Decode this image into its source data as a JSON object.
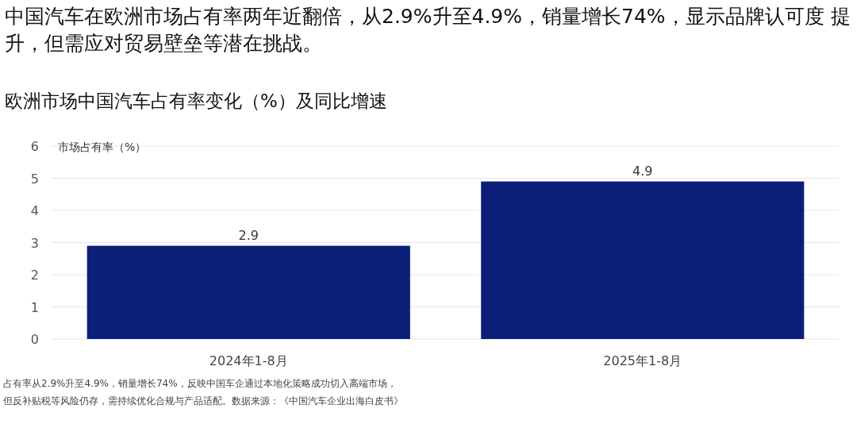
{
  "chart_data": {
    "type": "bar",
    "title": "中国汽车在欧洲市场占有率两年近翻倍，从2.9%升至4.9%，销量增长74%，显示品牌认可度 提升，但需应对贸易壁垒等潜在挑战。",
    "subtitle": "欧洲市场中国汽车占有率变化（%）及同比增速",
    "ylabel": "市场占有率（%）",
    "categories": [
      "2024年1-8月",
      "2025年1-8月"
    ],
    "values": [
      2.9,
      4.9
    ],
    "color": "#0b1f78",
    "ylim": [
      0,
      6
    ],
    "yticks": [
      0,
      1,
      2,
      3,
      4,
      5,
      6
    ],
    "grid": "y",
    "data_labels": true,
    "annotations": [
      "占有率从2.9%升至4.9%，销量增长74%，反映中国车企通过本地化策略成功切入高端市场，",
      "但反补贴税等风险仍存，需持续优化合规与产品适配。数据来源：《中国汽车企业出海白皮书》"
    ]
  }
}
